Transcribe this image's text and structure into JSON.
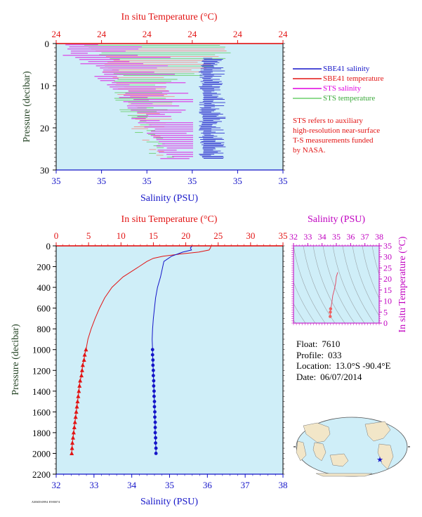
{
  "colors": {
    "salinity": "#1414c8",
    "temperature": "#e21414",
    "sts_salinity": "#e000e0",
    "sts_temperature": "#6ccf6c",
    "sts_temperature_salmon": "#f2928a",
    "plot_bg": "#cfeef8",
    "pressure_label": "#204020",
    "ts_axis": "#c000c0"
  },
  "top_panel": {
    "top_axis_title": "In situ Temperature (°C)",
    "bottom_axis_title": "Salinity (PSU)",
    "left_axis_title": "Pressure (decibar)",
    "temp_ticks": [
      "24",
      "24",
      "24",
      "24",
      "24",
      "24"
    ],
    "sal_ticks": [
      "35",
      "35",
      "35",
      "35",
      "35",
      "35"
    ],
    "pressure_ticks": [
      "0",
      "10",
      "20",
      "30"
    ],
    "legend": [
      {
        "label": "SBE41 salinity",
        "color": "#1414c8"
      },
      {
        "label": "SBE41 temperature",
        "color": "#e21414"
      },
      {
        "label": "STS salinity",
        "color": "#e000e0"
      },
      {
        "label": "STS temperature",
        "color": "#6ccf6c"
      }
    ],
    "note_lines": [
      "STS refers to auxiliary",
      "high-resolution near-surface",
      "T-S measurements funded",
      "by NASA."
    ]
  },
  "bottom_panel": {
    "top_axis_title": "In situ Temperature (°C)",
    "bottom_axis_title": "Salinity (PSU)",
    "left_axis_title": "Pressure (decibar)",
    "temp_ticks": [
      "0",
      "5",
      "10",
      "15",
      "20",
      "25",
      "30",
      "35"
    ],
    "sal_ticks": [
      "32",
      "33",
      "34",
      "35",
      "36",
      "37",
      "38"
    ],
    "pressure_ticks": [
      "0",
      "200",
      "400",
      "600",
      "800",
      "1000",
      "1200",
      "1400",
      "1600",
      "1800",
      "2000",
      "2200"
    ]
  },
  "ts_panel": {
    "top_axis_title": "Salinity (PSU)",
    "right_axis_title": "In situ Temperature (°C)",
    "sal_ticks": [
      "32",
      "33",
      "34",
      "35",
      "36",
      "37",
      "38"
    ],
    "temp_ticks": [
      "0",
      "5",
      "10",
      "15",
      "20",
      "25",
      "30",
      "35"
    ]
  },
  "info": {
    "float_label": "Float:",
    "float_value": "7610",
    "profile_label": "Profile:",
    "profile_value": "033",
    "location_label": "Location:",
    "location_value": "13.0°S  -90.4°E",
    "date_label": "Date:",
    "date_value": "06/07/2014"
  },
  "footnote": "AMSDS0994 E980074",
  "chart_data": [
    {
      "type": "line",
      "title": "",
      "xlabel": "Salinity (PSU)",
      "x2label": "In situ Temperature (°C)",
      "ylabel": "Pressure (decibar)",
      "xlim": [
        32,
        38
      ],
      "x2lim": [
        0,
        35
      ],
      "ylim": [
        2200,
        0
      ],
      "series": [
        {
          "name": "SBE41 salinity",
          "pressure": [
            0,
            20,
            40,
            60,
            100,
            150,
            200,
            300,
            400,
            500,
            600,
            700,
            800,
            900,
            1000,
            1050,
            1100,
            1150,
            1200,
            1250,
            1300,
            1350,
            1400,
            1450,
            1500,
            1550,
            1600,
            1650,
            1700,
            1750,
            1800,
            1850,
            1900,
            1950,
            2000
          ],
          "values": [
            35.6,
            35.55,
            35.58,
            35.35,
            35.05,
            34.85,
            34.82,
            34.76,
            34.68,
            34.63,
            34.6,
            34.57,
            34.55,
            34.54,
            34.55,
            34.55,
            34.56,
            34.56,
            34.57,
            34.57,
            34.58,
            34.58,
            34.59,
            34.59,
            34.6,
            34.6,
            34.61,
            34.61,
            34.62,
            34.62,
            34.62,
            34.63,
            34.63,
            34.64,
            34.64
          ]
        },
        {
          "name": "SBE41 temperature",
          "pressure": [
            0,
            20,
            40,
            60,
            80,
            100,
            120,
            150,
            200,
            300,
            400,
            500,
            600,
            700,
            800,
            900,
            1000,
            1050,
            1100,
            1150,
            1200,
            1250,
            1300,
            1350,
            1400,
            1450,
            1500,
            1550,
            1600,
            1650,
            1700,
            1750,
            1800,
            1850,
            1900,
            1950,
            2000
          ],
          "values": [
            23.9,
            23.8,
            23.6,
            22.0,
            19.0,
            16.5,
            15.0,
            14.0,
            12.8,
            10.3,
            8.6,
            7.5,
            6.7,
            6.0,
            5.4,
            4.9,
            4.6,
            4.4,
            4.3,
            4.1,
            4.0,
            3.9,
            3.7,
            3.6,
            3.5,
            3.4,
            3.3,
            3.2,
            3.1,
            3.0,
            2.9,
            2.8,
            2.7,
            2.6,
            2.5,
            2.45,
            2.4
          ]
        }
      ]
    },
    {
      "type": "line",
      "title": "",
      "xlabel": "Salinity (PSU)",
      "ylabel": "In situ Temperature (°C)",
      "xlim": [
        32,
        38
      ],
      "ylim": [
        0,
        35
      ],
      "series": [
        {
          "name": "",
          "x": [
            35.1,
            35.0,
            34.95,
            34.85,
            34.75,
            34.7,
            34.65,
            34.6,
            34.58,
            34.57
          ],
          "y": [
            23.0,
            21.0,
            18.0,
            15.0,
            12.5,
            10.0,
            8.0,
            6.5,
            5.0,
            3.0
          ]
        }
      ]
    }
  ]
}
